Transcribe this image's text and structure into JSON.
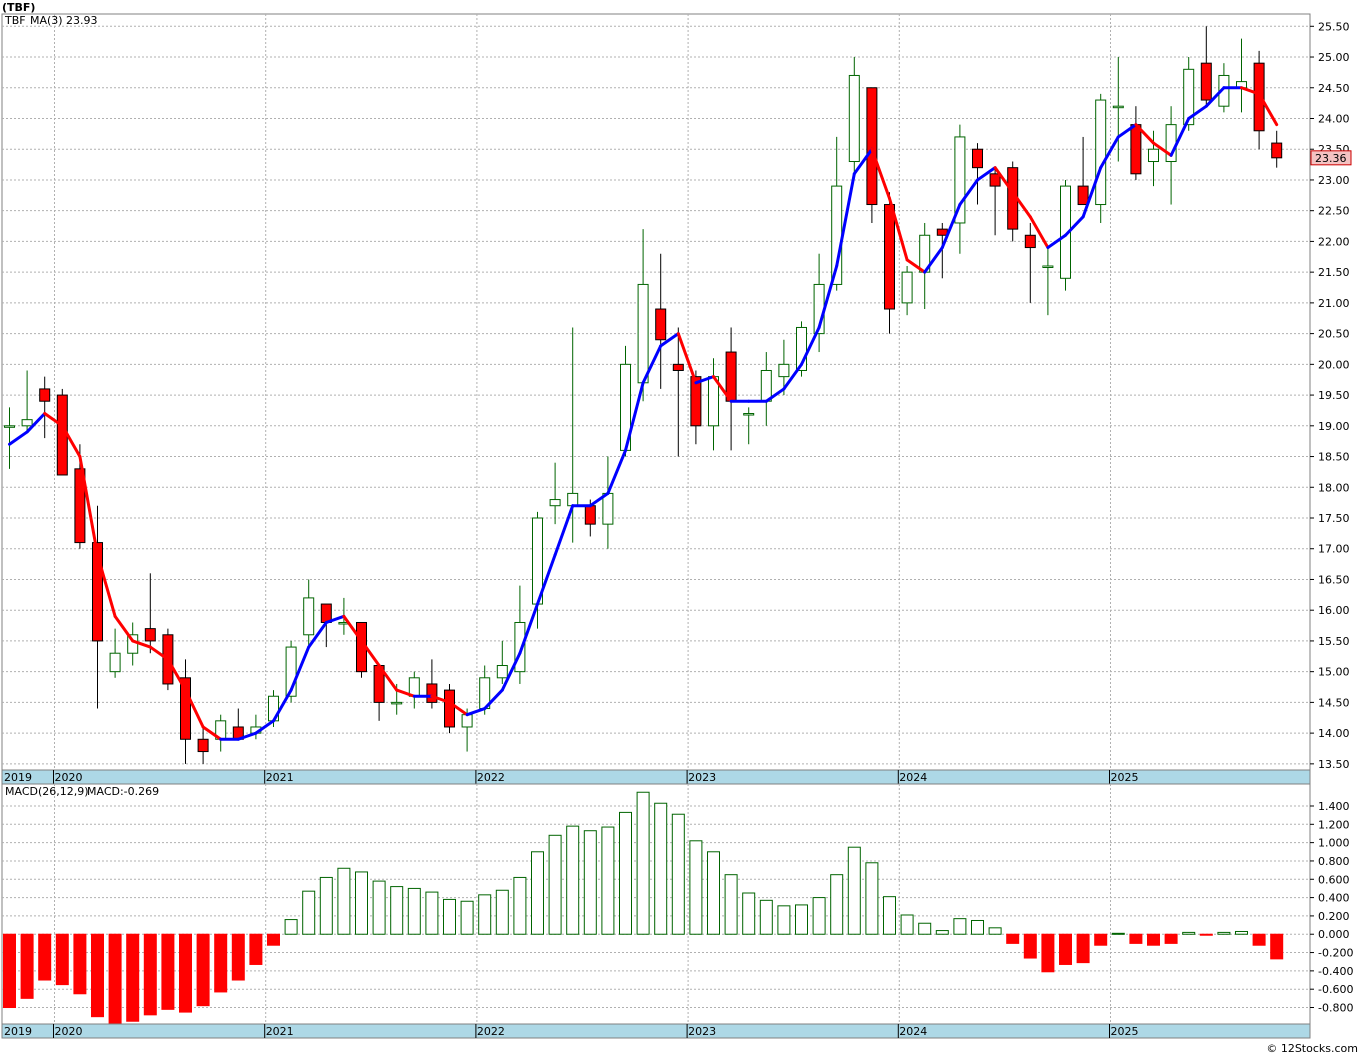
{
  "header": {
    "title": "(TBF)",
    "footer": "© 12Stocks.com"
  },
  "price_panel": {
    "ticker": "TBF",
    "ma_label": "MA(3)",
    "ma_value": "23.93",
    "last_price": "23.36"
  },
  "macd_panel": {
    "label": "MACD(26,12,9)",
    "value_label": "MACD:-0.269"
  },
  "colors": {
    "up": "#006400",
    "down": "#ff0000",
    "ma_up": "#0000ff",
    "ma_down": "#ff0000",
    "grid": "#b0b0b0",
    "axis_band": "#add8e6",
    "ma_label": "#0000ff"
  },
  "chart_data": [
    {
      "type": "candlestick",
      "title": "(TBF)",
      "ylim": [
        13.4,
        25.7
      ],
      "y_ticks": [
        "13.50",
        "14.00",
        "14.50",
        "15.00",
        "15.50",
        "16.00",
        "16.50",
        "17.00",
        "17.50",
        "18.00",
        "18.50",
        "19.00",
        "19.50",
        "20.00",
        "20.50",
        "21.00",
        "21.50",
        "22.00",
        "22.50",
        "23.00",
        "23.50",
        "24.00",
        "24.50",
        "25.00",
        "25.50"
      ],
      "x_labels": [
        "2019",
        "2020",
        "2021",
        "2022",
        "2023",
        "2024",
        "2025"
      ],
      "x_label_months": [
        0,
        3,
        15,
        27,
        39,
        51,
        63
      ],
      "start_month": "2019-10",
      "ohlc": [
        [
          19.0,
          19.3,
          18.3,
          19.0
        ],
        [
          19.0,
          19.9,
          18.9,
          19.1
        ],
        [
          19.6,
          19.8,
          18.8,
          19.4
        ],
        [
          19.5,
          19.6,
          18.2,
          18.2
        ],
        [
          18.3,
          18.7,
          17.0,
          17.1
        ],
        [
          17.1,
          17.7,
          14.4,
          15.5
        ],
        [
          15.0,
          15.7,
          14.9,
          15.3
        ],
        [
          15.3,
          15.8,
          15.1,
          15.6
        ],
        [
          15.7,
          16.6,
          15.3,
          15.5
        ],
        [
          15.6,
          15.7,
          14.7,
          14.8
        ],
        [
          14.9,
          15.2,
          13.5,
          13.9
        ],
        [
          13.9,
          14.1,
          13.5,
          13.7
        ],
        [
          13.9,
          14.3,
          13.7,
          14.2
        ],
        [
          14.1,
          14.4,
          13.9,
          13.9
        ],
        [
          14.0,
          14.3,
          13.9,
          14.1
        ],
        [
          14.2,
          14.7,
          14.1,
          14.6
        ],
        [
          14.6,
          15.5,
          14.5,
          15.4
        ],
        [
          15.6,
          16.5,
          15.4,
          16.2
        ],
        [
          16.1,
          16.1,
          15.4,
          15.8
        ],
        [
          15.8,
          16.2,
          15.6,
          15.8
        ],
        [
          15.8,
          15.8,
          14.9,
          15.0
        ],
        [
          15.1,
          15.1,
          14.2,
          14.5
        ],
        [
          14.5,
          14.8,
          14.3,
          14.5
        ],
        [
          14.6,
          15.0,
          14.4,
          14.9
        ],
        [
          14.8,
          15.2,
          14.4,
          14.5
        ],
        [
          14.7,
          14.8,
          14.0,
          14.1
        ],
        [
          14.1,
          14.4,
          13.7,
          14.3
        ],
        [
          14.4,
          15.1,
          14.3,
          14.9
        ],
        [
          14.9,
          15.5,
          14.8,
          15.1
        ],
        [
          15.0,
          16.4,
          14.8,
          15.8
        ],
        [
          16.1,
          17.6,
          15.7,
          17.5
        ],
        [
          17.7,
          18.4,
          17.4,
          17.8
        ],
        [
          17.7,
          20.6,
          17.1,
          17.9
        ],
        [
          17.7,
          17.8,
          17.2,
          17.4
        ],
        [
          17.4,
          18.5,
          17.0,
          17.9
        ],
        [
          18.6,
          20.3,
          18.5,
          20.0
        ],
        [
          19.7,
          22.2,
          19.4,
          21.3
        ],
        [
          20.9,
          21.8,
          19.6,
          20.4
        ],
        [
          20.0,
          20.6,
          18.5,
          19.9
        ],
        [
          19.8,
          19.9,
          18.7,
          19.0
        ],
        [
          19.0,
          20.1,
          18.6,
          19.8
        ],
        [
          20.2,
          20.6,
          18.6,
          19.4
        ],
        [
          19.2,
          19.3,
          18.7,
          19.2
        ],
        [
          19.4,
          20.2,
          19.0,
          19.9
        ],
        [
          19.8,
          20.4,
          19.5,
          20.0
        ],
        [
          19.9,
          20.7,
          19.8,
          20.6
        ],
        [
          20.5,
          21.8,
          20.2,
          21.3
        ],
        [
          21.3,
          23.7,
          21.2,
          22.9
        ],
        [
          23.3,
          25.0,
          23.1,
          24.7
        ],
        [
          24.5,
          24.5,
          22.3,
          22.6
        ],
        [
          22.6,
          22.8,
          20.5,
          20.9
        ],
        [
          21.0,
          21.6,
          20.8,
          21.5
        ],
        [
          21.5,
          22.3,
          20.9,
          22.1
        ],
        [
          22.2,
          22.3,
          21.4,
          22.1
        ],
        [
          22.3,
          23.9,
          21.8,
          23.7
        ],
        [
          23.5,
          23.6,
          22.6,
          23.2
        ],
        [
          23.1,
          23.2,
          22.1,
          22.9
        ],
        [
          23.2,
          23.3,
          22.0,
          22.2
        ],
        [
          22.1,
          22.3,
          21.0,
          21.9
        ],
        [
          21.6,
          21.9,
          20.8,
          21.6
        ],
        [
          21.4,
          23.0,
          21.2,
          22.9
        ],
        [
          22.9,
          23.7,
          22.7,
          22.6
        ],
        [
          22.6,
          24.4,
          22.3,
          24.3
        ],
        [
          24.2,
          25.0,
          23.3,
          24.2
        ],
        [
          23.9,
          24.2,
          23.0,
          23.1
        ],
        [
          23.3,
          23.8,
          22.9,
          23.5
        ],
        [
          23.3,
          24.2,
          22.6,
          23.9
        ],
        [
          23.9,
          25.0,
          23.8,
          24.8
        ],
        [
          24.9,
          25.5,
          24.2,
          24.3
        ],
        [
          24.2,
          24.9,
          24.1,
          24.7
        ],
        [
          24.5,
          25.3,
          24.1,
          24.6
        ],
        [
          24.9,
          25.1,
          23.5,
          23.8
        ],
        [
          23.6,
          23.8,
          23.2,
          23.36
        ]
      ],
      "ma3": [
        18.7,
        18.9,
        19.2,
        19.0,
        18.5,
        16.9,
        15.9,
        15.5,
        15.4,
        15.2,
        14.7,
        14.1,
        13.9,
        13.9,
        14.0,
        14.2,
        14.7,
        15.4,
        15.8,
        15.9,
        15.5,
        15.1,
        14.7,
        14.6,
        14.6,
        14.5,
        14.3,
        14.4,
        14.7,
        15.3,
        16.1,
        16.9,
        17.7,
        17.7,
        17.9,
        18.6,
        19.7,
        20.3,
        20.5,
        19.7,
        19.8,
        19.4,
        19.4,
        19.4,
        19.6,
        20.0,
        20.6,
        21.6,
        23.1,
        23.5,
        22.7,
        21.7,
        21.5,
        21.9,
        22.6,
        23.0,
        23.2,
        22.8,
        22.4,
        21.9,
        22.1,
        22.4,
        23.2,
        23.7,
        23.9,
        23.6,
        23.4,
        24.0,
        24.2,
        24.5,
        24.5,
        24.4,
        23.9
      ]
    },
    {
      "type": "bar",
      "title": "MACD(26,12,9)",
      "ylim": [
        -0.98,
        1.64
      ],
      "y_ticks": [
        "-0.800",
        "-0.600",
        "-0.400",
        "-0.200",
        "0.000",
        "0.200",
        "0.400",
        "0.600",
        "0.800",
        "1.000",
        "1.200",
        "1.400"
      ],
      "x_labels": [
        "2019",
        "2020",
        "2021",
        "2022",
        "2023",
        "2024",
        "2025"
      ],
      "values": [
        -0.8,
        -0.7,
        -0.5,
        -0.55,
        -0.65,
        -0.9,
        -0.98,
        -0.95,
        -0.88,
        -0.82,
        -0.85,
        -0.78,
        -0.63,
        -0.5,
        -0.33,
        -0.12,
        0.16,
        0.47,
        0.62,
        0.72,
        0.68,
        0.58,
        0.52,
        0.5,
        0.46,
        0.38,
        0.36,
        0.43,
        0.48,
        0.62,
        0.9,
        1.08,
        1.18,
        1.13,
        1.17,
        1.33,
        1.55,
        1.43,
        1.31,
        1.02,
        0.9,
        0.65,
        0.45,
        0.37,
        0.31,
        0.32,
        0.4,
        0.65,
        0.95,
        0.78,
        0.41,
        0.21,
        0.12,
        0.04,
        0.17,
        0.15,
        0.07,
        -0.1,
        -0.26,
        -0.41,
        -0.33,
        -0.31,
        -0.12,
        0.01,
        -0.1,
        -0.12,
        -0.1,
        0.02,
        -0.01,
        0.02,
        0.03,
        -0.12,
        -0.269
      ]
    }
  ]
}
